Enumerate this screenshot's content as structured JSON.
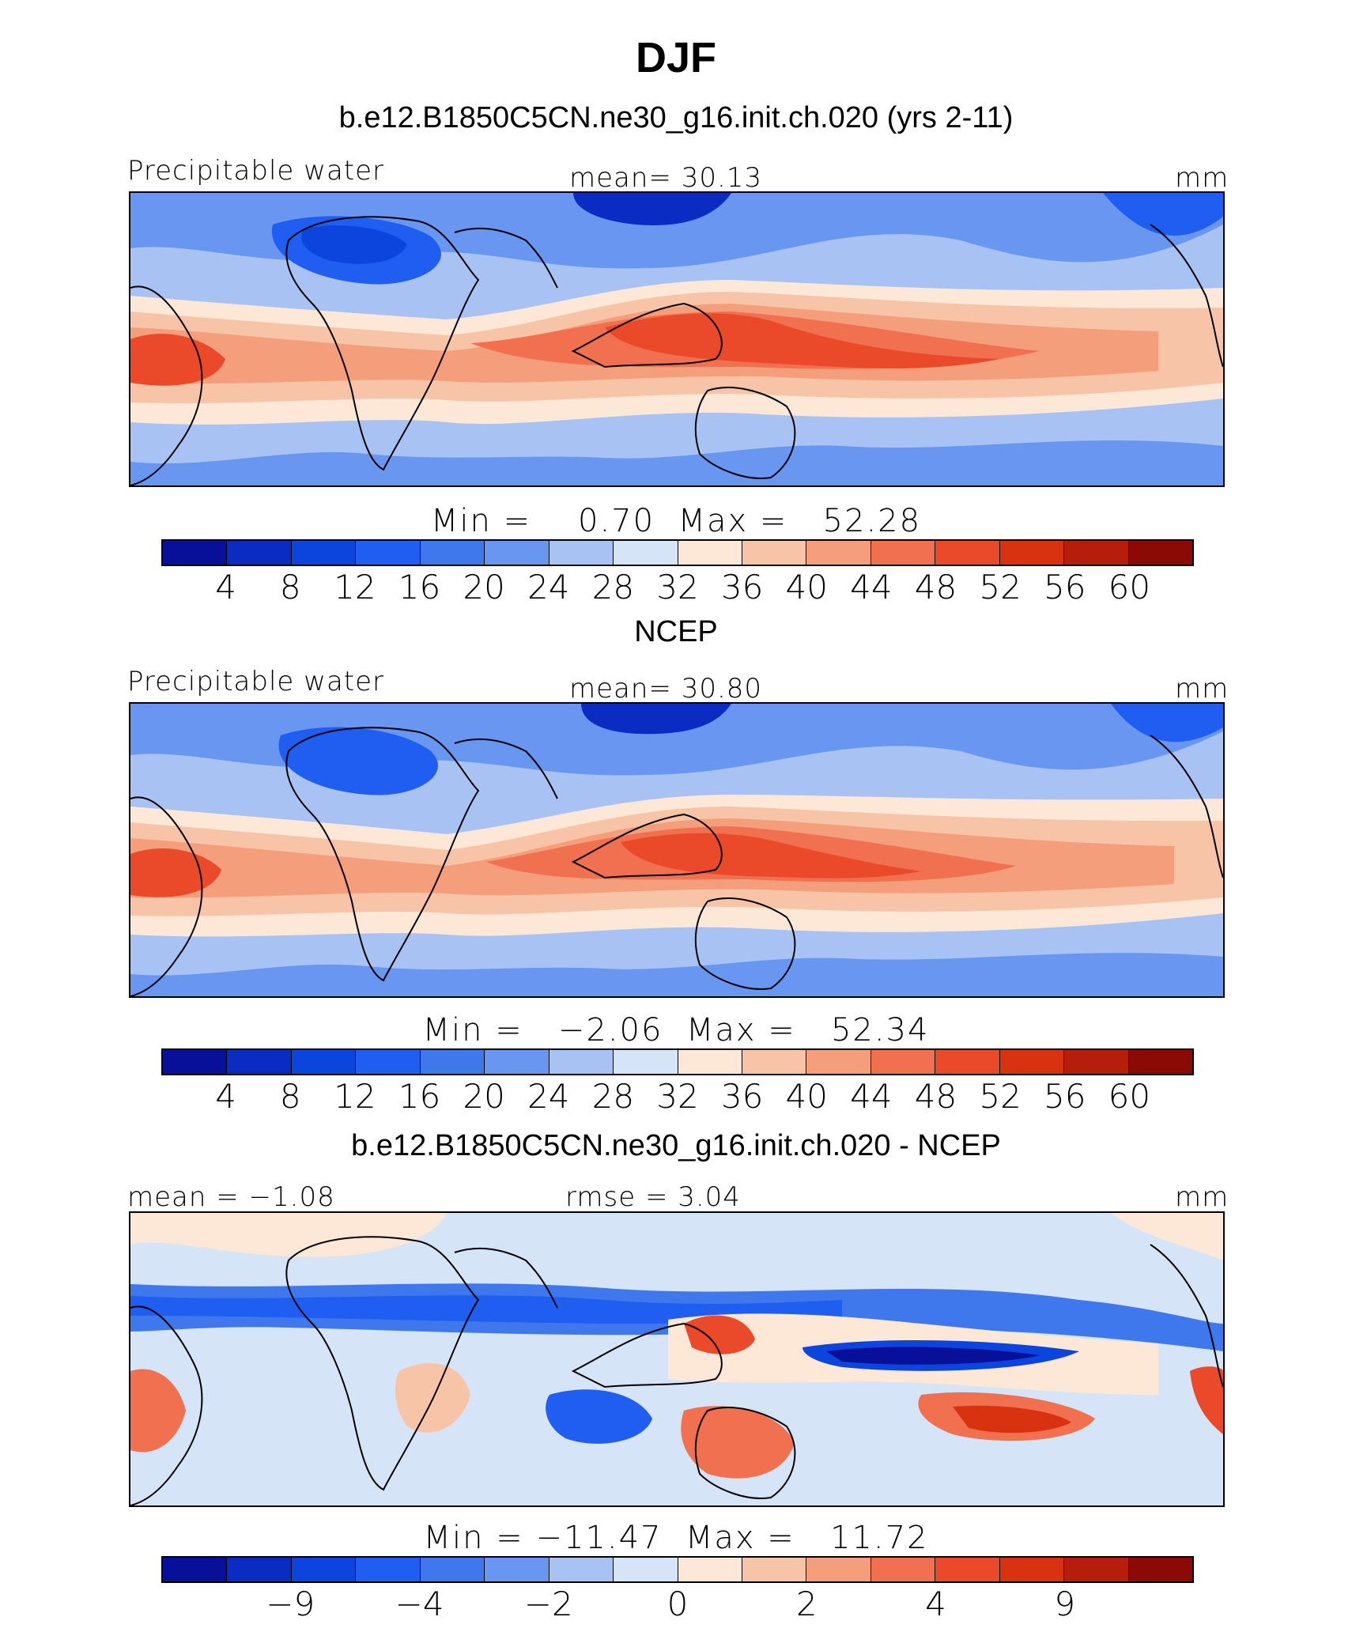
{
  "chart_data": {
    "title": "DJF",
    "colors": {
      "abs_palette": [
        "#08109a",
        "#0a2cc2",
        "#0c45de",
        "#1f5ef0",
        "#3e78ec",
        "#6896f0",
        "#a9c2f4",
        "#d6e4f8",
        "#fde8d8",
        "#f8c4a8",
        "#f59e7c",
        "#f07050",
        "#ea4a2a",
        "#d83210",
        "#b41e0a",
        "#8c0a06"
      ],
      "diff_palette": [
        "#08109a",
        "#0a2cc2",
        "#0c45de",
        "#1f5ef0",
        "#3e78ec",
        "#6896f0",
        "#a9c2f4",
        "#d6e4f8",
        "#fde8d8",
        "#f8c4a8",
        "#f59e7c",
        "#f07050",
        "#ea4a2a",
        "#d83210",
        "#b41e0a",
        "#8c0a06"
      ]
    },
    "panels": [
      {
        "type": "heatmap",
        "title": "b.e12.B1850C5CN.ne30_g16.init.ch.020 (yrs 2-11)",
        "left_label": "Precipitable water",
        "center_label": "mean=   30.13",
        "units": "mm",
        "minmax": "Min =    0.70  Max =   52.28",
        "colorbar_ticks": [
          "4",
          "8",
          "12",
          "16",
          "20",
          "24",
          "28",
          "32",
          "36",
          "40",
          "44",
          "48",
          "52",
          "56",
          "60"
        ]
      },
      {
        "type": "heatmap",
        "title": "NCEP",
        "left_label": "Precipitable water",
        "center_label": "mean=   30.80",
        "units": "mm",
        "minmax": "Min =   −2.06  Max =   52.34",
        "colorbar_ticks": [
          "4",
          "8",
          "12",
          "16",
          "20",
          "24",
          "28",
          "32",
          "36",
          "40",
          "44",
          "48",
          "52",
          "56",
          "60"
        ]
      },
      {
        "type": "heatmap",
        "title": "b.e12.B1850C5CN.ne30_g16.init.ch.020 - NCEP",
        "left_label": "mean =  −1.08",
        "center_label": "rmse =    3.04",
        "units": "mm",
        "minmax": "Min = −11.47  Max =   11.72",
        "colorbar_ticks": [
          "−9",
          "−4",
          "−2",
          "0",
          "2",
          "4",
          "9"
        ]
      }
    ]
  }
}
